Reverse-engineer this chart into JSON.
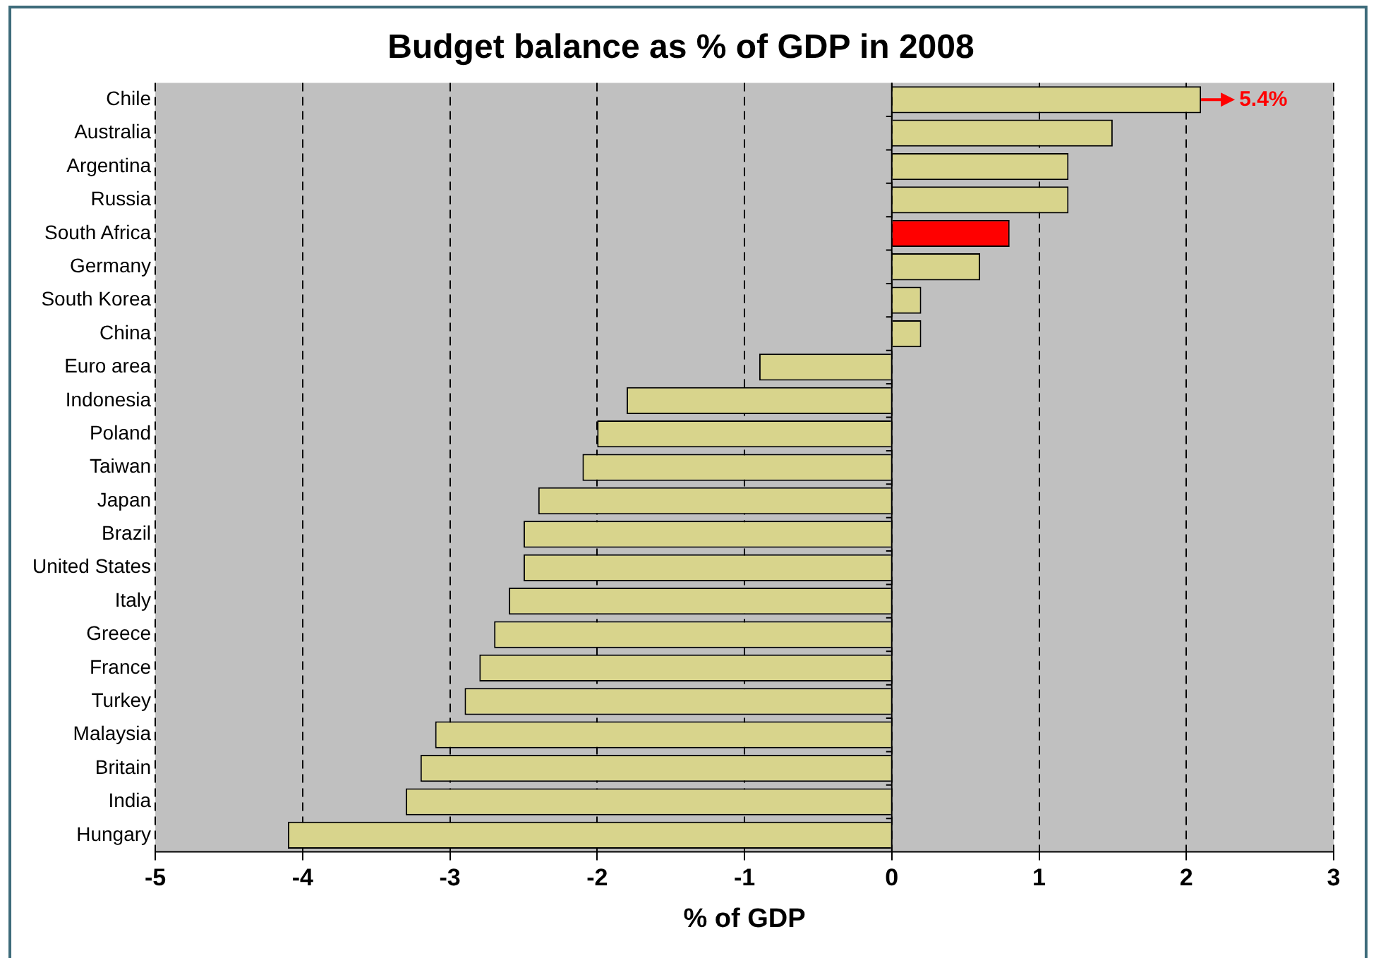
{
  "chart_data": {
    "type": "bar",
    "orientation": "horizontal",
    "title": "Budget balance as % of GDP in 2008",
    "xlabel": "% of GDP",
    "categories": [
      "Chile",
      "Australia",
      "Argentina",
      "Russia",
      "South Africa",
      "Germany",
      "South Korea",
      "China",
      "Euro area",
      "Indonesia",
      "Poland",
      "Taiwan",
      "Japan",
      "Brazil",
      "United States",
      "Italy",
      "Greece",
      "France",
      "Turkey",
      "Malaysia",
      "Britain",
      "India",
      "Hungary"
    ],
    "values": [
      2.1,
      1.5,
      1.2,
      1.2,
      0.8,
      0.6,
      0.2,
      0.2,
      -0.9,
      -1.8,
      -2.0,
      -2.1,
      -2.4,
      -2.5,
      -2.5,
      -2.6,
      -2.7,
      -2.8,
      -2.9,
      -3.1,
      -3.2,
      -3.3,
      -4.1
    ],
    "colors": [
      "#d8d48c",
      "#d8d48c",
      "#d8d48c",
      "#d8d48c",
      "#ff0000",
      "#d8d48c",
      "#d8d48c",
      "#d8d48c",
      "#d8d48c",
      "#d8d48c",
      "#d8d48c",
      "#d8d48c",
      "#d8d48c",
      "#d8d48c",
      "#d8d48c",
      "#d8d48c",
      "#d8d48c",
      "#d8d48c",
      "#d8d48c",
      "#d8d48c",
      "#d8d48c",
      "#d8d48c",
      "#d8d48c"
    ],
    "xlim": [
      -5,
      3
    ],
    "xticks": [
      -5,
      -4,
      -3,
      -2,
      -1,
      0,
      1,
      2,
      3
    ],
    "grid": "x",
    "legend": false,
    "annotations": [
      {
        "text": "5.4%",
        "x": 2.1,
        "y": "Chile"
      }
    ]
  }
}
